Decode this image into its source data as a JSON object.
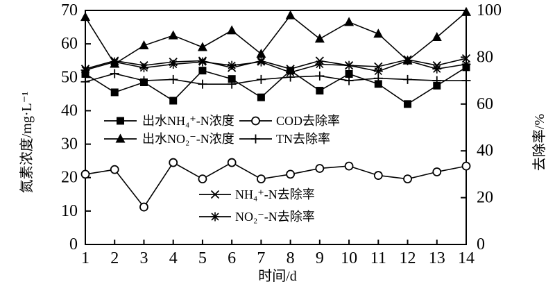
{
  "figure": {
    "background": "#ffffff",
    "ink_color": "#000000"
  },
  "chart_data": {
    "type": "line",
    "title": "",
    "xlabel": "时间/d",
    "ylabel_left": "氮素浓度/mg·L⁻¹",
    "ylabel_right": "去除率/%",
    "xlim": [
      1,
      14
    ],
    "ylim_left": [
      0,
      70
    ],
    "ylim_right": [
      0,
      100
    ],
    "x_ticks": [
      1,
      2,
      3,
      4,
      5,
      6,
      7,
      8,
      9,
      10,
      11,
      12,
      13,
      14
    ],
    "left_ticks": [
      0,
      10,
      20,
      30,
      40,
      50,
      60,
      70
    ],
    "right_ticks": [
      0,
      20,
      40,
      60,
      80,
      100
    ],
    "grid": false,
    "legend_position": "inside-plot",
    "x": [
      1,
      2,
      3,
      4,
      5,
      6,
      7,
      8,
      9,
      10,
      11,
      12,
      13,
      14
    ],
    "series": [
      {
        "key": "effluent-nh4-n-concentration",
        "name": "出水NH₄⁺-N浓度",
        "axis": "left",
        "marker": "filled-square",
        "unit": "mg·L⁻¹",
        "values": [
          51,
          45.5,
          48.5,
          43,
          52,
          49.5,
          44,
          52,
          46,
          51,
          48,
          42,
          47.5,
          53
        ]
      },
      {
        "key": "effluent-no2-n-concentration",
        "name": "出水NO₂⁻-N浓度",
        "axis": "left",
        "marker": "filled-triangle",
        "unit": "mg·L⁻¹",
        "values": [
          68,
          54,
          59.5,
          62.5,
          59,
          64,
          57,
          68.5,
          61.5,
          66.5,
          63,
          55,
          62,
          69.5
        ]
      },
      {
        "key": "cod-removal-rate",
        "name": "COD去除率",
        "axis": "right",
        "marker": "open-circle",
        "unit": "%",
        "values": [
          30,
          32,
          16,
          35,
          28,
          35,
          28,
          30,
          32.5,
          33.5,
          29.5,
          28,
          31,
          33.5
        ]
      },
      {
        "key": "tn-removal-rate",
        "name": "TN去除率",
        "axis": "right",
        "marker": "plus",
        "unit": "%",
        "values": [
          69.5,
          73,
          70,
          70.5,
          68.5,
          68.5,
          70.5,
          71.5,
          72,
          70,
          71,
          70.5,
          70,
          70
        ]
      },
      {
        "key": "nh4-n-removal-rate",
        "name": "NH₄⁺-N去除率",
        "axis": "right",
        "marker": "x-cross",
        "unit": "%",
        "values": [
          75,
          78.5,
          76.5,
          78,
          78.5,
          75.5,
          78.5,
          75,
          78.5,
          76.5,
          76,
          79,
          76.5,
          79.5
        ]
      },
      {
        "key": "no2-n-removal-rate",
        "name": "NO₂⁻-N去除率",
        "axis": "right",
        "marker": "asterisk",
        "unit": "%",
        "values": [
          74.5,
          78,
          75.5,
          77,
          78,
          76.5,
          78,
          73.5,
          77,
          76.5,
          74,
          78.5,
          75,
          77
        ]
      }
    ],
    "legend": [
      {
        "series": 0,
        "label": "出水NH₄⁺-N浓度"
      },
      {
        "series": 1,
        "label": "出水NO₂⁻-N浓度"
      },
      {
        "series": 2,
        "label": "COD去除率"
      },
      {
        "series": 3,
        "label": "TN去除率"
      },
      {
        "series": 4,
        "label": "NH₄⁺-N去除率"
      },
      {
        "series": 5,
        "label": "NO₂⁻-N去除率"
      }
    ]
  }
}
